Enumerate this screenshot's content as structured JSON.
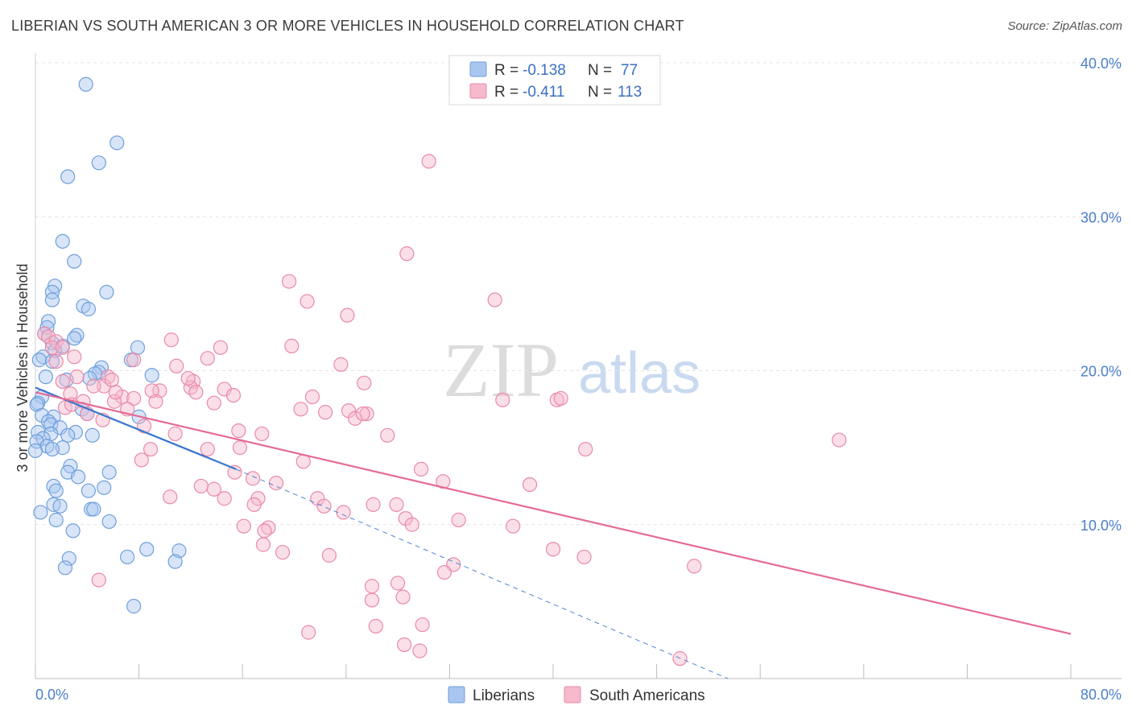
{
  "header": {
    "title": "LIBERIAN VS SOUTH AMERICAN 3 OR MORE VEHICLES IN HOUSEHOLD CORRELATION CHART",
    "source": "Source: ZipAtlas.com"
  },
  "watermark": {
    "zip": "ZIP",
    "atlas": "atlas"
  },
  "legend_top": [
    {
      "r_label": "R =",
      "r_value": "-0.138",
      "n_label": "N =",
      "n_value": "77",
      "color": "#a8c6ef",
      "stroke": "#6f9fdc"
    },
    {
      "r_label": "R =",
      "r_value": "-0.411",
      "n_label": "N =",
      "n_value": "113",
      "color": "#f7b9cc",
      "stroke": "#e98aa8"
    }
  ],
  "chart_data": {
    "type": "scatter",
    "title": "LIBERIAN VS SOUTH AMERICAN 3 OR MORE VEHICLES IN HOUSEHOLD CORRELATION CHART",
    "xlabel": "",
    "ylabel": "3 or more Vehicles in Household",
    "xlim": [
      0,
      80
    ],
    "ylim": [
      0,
      40
    ],
    "x_tick_labels": [
      "0.0%",
      "80.0%"
    ],
    "y_tick_labels": [
      "10.0%",
      "20.0%",
      "30.0%",
      "40.0%"
    ],
    "y_ticks": [
      10,
      20,
      30,
      40
    ],
    "grid": true,
    "legend_position": "bottom",
    "series": [
      {
        "name": "Liberians",
        "color": "#a8c6ef",
        "stroke": "#6f9fdc",
        "trend": {
          "x": [
            0,
            15.5
          ],
          "y": [
            18.9,
            13.6
          ],
          "dashed_to": [
            53.5,
            0
          ]
        },
        "points": [
          [
            3.9,
            38.6
          ],
          [
            6.3,
            34.8
          ],
          [
            4.9,
            33.5
          ],
          [
            2.5,
            32.6
          ],
          [
            2.1,
            28.4
          ],
          [
            3.0,
            27.1
          ],
          [
            1.5,
            25.5
          ],
          [
            1.3,
            25.1
          ],
          [
            5.5,
            25.1
          ],
          [
            3.7,
            24.2
          ],
          [
            4.1,
            24.0
          ],
          [
            1.3,
            24.6
          ],
          [
            1.0,
            23.2
          ],
          [
            0.9,
            22.8
          ],
          [
            0.7,
            22.4
          ],
          [
            3.2,
            22.3
          ],
          [
            3.0,
            22.1
          ],
          [
            1.3,
            21.8
          ],
          [
            2.1,
            21.6
          ],
          [
            7.9,
            21.5
          ],
          [
            1.5,
            21.3
          ],
          [
            0.6,
            20.9
          ],
          [
            0.3,
            20.7
          ],
          [
            7.4,
            20.7
          ],
          [
            1.3,
            20.6
          ],
          [
            5.1,
            20.2
          ],
          [
            4.9,
            19.9
          ],
          [
            4.6,
            19.8
          ],
          [
            9.0,
            19.7
          ],
          [
            0.8,
            19.6
          ],
          [
            4.2,
            19.5
          ],
          [
            2.4,
            19.4
          ],
          [
            0.5,
            18.3
          ],
          [
            0.2,
            17.9
          ],
          [
            0.1,
            17.8
          ],
          [
            3.6,
            17.5
          ],
          [
            0.5,
            17.1
          ],
          [
            4.0,
            17.2
          ],
          [
            1.4,
            17.0
          ],
          [
            8.0,
            17.0
          ],
          [
            1.0,
            16.7
          ],
          [
            1.2,
            16.5
          ],
          [
            1.9,
            16.3
          ],
          [
            0.2,
            16.0
          ],
          [
            3.1,
            16.0
          ],
          [
            1.2,
            15.9
          ],
          [
            2.5,
            15.8
          ],
          [
            4.4,
            15.8
          ],
          [
            0.6,
            15.6
          ],
          [
            0.1,
            15.4
          ],
          [
            0.9,
            15.1
          ],
          [
            2.1,
            15.0
          ],
          [
            1.3,
            14.9
          ],
          [
            0.0,
            14.8
          ],
          [
            2.7,
            13.8
          ],
          [
            2.5,
            13.4
          ],
          [
            5.7,
            13.4
          ],
          [
            3.3,
            13.1
          ],
          [
            1.4,
            12.5
          ],
          [
            5.3,
            12.4
          ],
          [
            1.6,
            12.2
          ],
          [
            4.1,
            12.2
          ],
          [
            1.4,
            11.3
          ],
          [
            1.9,
            11.2
          ],
          [
            4.3,
            11.0
          ],
          [
            4.5,
            11.0
          ],
          [
            0.4,
            10.8
          ],
          [
            1.6,
            10.3
          ],
          [
            5.7,
            10.2
          ],
          [
            2.9,
            9.6
          ],
          [
            8.6,
            8.4
          ],
          [
            11.1,
            8.3
          ],
          [
            7.1,
            7.9
          ],
          [
            2.6,
            7.8
          ],
          [
            10.8,
            7.6
          ],
          [
            2.3,
            7.2
          ],
          [
            7.6,
            4.7
          ]
        ]
      },
      {
        "name": "South Americans",
        "color": "#f7b9cc",
        "stroke": "#e98aa8",
        "trend": {
          "x": [
            0,
            80
          ],
          "y": [
            18.6,
            2.9
          ]
        },
        "points": [
          [
            30.4,
            33.6
          ],
          [
            28.7,
            27.6
          ],
          [
            19.6,
            25.8
          ],
          [
            35.5,
            24.6
          ],
          [
            21.0,
            24.5
          ],
          [
            24.1,
            23.6
          ],
          [
            0.7,
            22.4
          ],
          [
            1.0,
            22.2
          ],
          [
            1.6,
            21.9
          ],
          [
            1.3,
            21.5
          ],
          [
            2.1,
            21.5
          ],
          [
            10.5,
            22.0
          ],
          [
            19.8,
            21.6
          ],
          [
            14.3,
            21.5
          ],
          [
            7.6,
            20.7
          ],
          [
            3.0,
            20.9
          ],
          [
            23.6,
            20.4
          ],
          [
            10.9,
            20.3
          ],
          [
            1.6,
            20.6
          ],
          [
            25.4,
            19.2
          ],
          [
            5.6,
            19.6
          ],
          [
            12.2,
            19.3
          ],
          [
            2.1,
            19.3
          ],
          [
            5.3,
            19.0
          ],
          [
            9.6,
            18.7
          ],
          [
            14.6,
            18.8
          ],
          [
            4.5,
            19.0
          ],
          [
            12.0,
            18.9
          ],
          [
            2.7,
            18.5
          ],
          [
            12.4,
            18.6
          ],
          [
            6.7,
            18.3
          ],
          [
            15.3,
            18.4
          ],
          [
            7.6,
            18.2
          ],
          [
            9.3,
            18.0
          ],
          [
            21.4,
            18.3
          ],
          [
            36.1,
            18.1
          ],
          [
            40.3,
            18.1
          ],
          [
            40.6,
            18.2
          ],
          [
            3.7,
            18.0
          ],
          [
            6.1,
            18.0
          ],
          [
            13.8,
            17.9
          ],
          [
            2.3,
            17.6
          ],
          [
            7.1,
            17.5
          ],
          [
            20.5,
            17.5
          ],
          [
            22.4,
            17.3
          ],
          [
            24.2,
            17.4
          ],
          [
            25.6,
            17.2
          ],
          [
            4.0,
            17.2
          ],
          [
            24.7,
            16.9
          ],
          [
            5.2,
            16.8
          ],
          [
            8.4,
            16.4
          ],
          [
            15.7,
            16.1
          ],
          [
            17.5,
            15.9
          ],
          [
            27.2,
            15.8
          ],
          [
            10.8,
            15.9
          ],
          [
            62.1,
            15.5
          ],
          [
            15.8,
            15.0
          ],
          [
            8.9,
            14.9
          ],
          [
            13.3,
            14.9
          ],
          [
            42.5,
            14.9
          ],
          [
            20.7,
            14.1
          ],
          [
            8.2,
            14.2
          ],
          [
            29.8,
            13.6
          ],
          [
            15.4,
            13.4
          ],
          [
            16.8,
            13.0
          ],
          [
            18.6,
            12.7
          ],
          [
            31.5,
            12.8
          ],
          [
            12.8,
            12.5
          ],
          [
            38.2,
            12.6
          ],
          [
            13.8,
            12.3
          ],
          [
            10.4,
            11.8
          ],
          [
            21.8,
            11.7
          ],
          [
            17.2,
            11.7
          ],
          [
            14.6,
            11.7
          ],
          [
            16.9,
            11.3
          ],
          [
            22.3,
            11.2
          ],
          [
            26.1,
            11.3
          ],
          [
            27.9,
            11.3
          ],
          [
            23.8,
            10.8
          ],
          [
            28.6,
            10.4
          ],
          [
            32.7,
            10.3
          ],
          [
            29.1,
            10.0
          ],
          [
            36.9,
            9.9
          ],
          [
            16.1,
            9.9
          ],
          [
            18.0,
            9.8
          ],
          [
            17.7,
            9.6
          ],
          [
            17.6,
            8.7
          ],
          [
            40.0,
            8.4
          ],
          [
            19.1,
            8.2
          ],
          [
            22.7,
            8.0
          ],
          [
            42.4,
            7.9
          ],
          [
            32.3,
            7.4
          ],
          [
            50.9,
            7.3
          ],
          [
            31.6,
            6.9
          ],
          [
            4.9,
            6.4
          ],
          [
            28.0,
            6.2
          ],
          [
            26.0,
            6.0
          ],
          [
            28.4,
            5.3
          ],
          [
            26.0,
            5.1
          ],
          [
            29.9,
            3.5
          ],
          [
            26.3,
            3.4
          ],
          [
            21.1,
            3.0
          ],
          [
            28.5,
            2.2
          ],
          [
            29.7,
            1.8
          ],
          [
            49.8,
            1.3
          ],
          [
            25.3,
            17.2
          ],
          [
            9.0,
            18.7
          ],
          [
            13.3,
            20.8
          ],
          [
            6.2,
            18.6
          ],
          [
            11.8,
            19.5
          ],
          [
            3.2,
            19.6
          ],
          [
            2.8,
            17.8
          ],
          [
            5.9,
            19.4
          ]
        ]
      }
    ]
  }
}
